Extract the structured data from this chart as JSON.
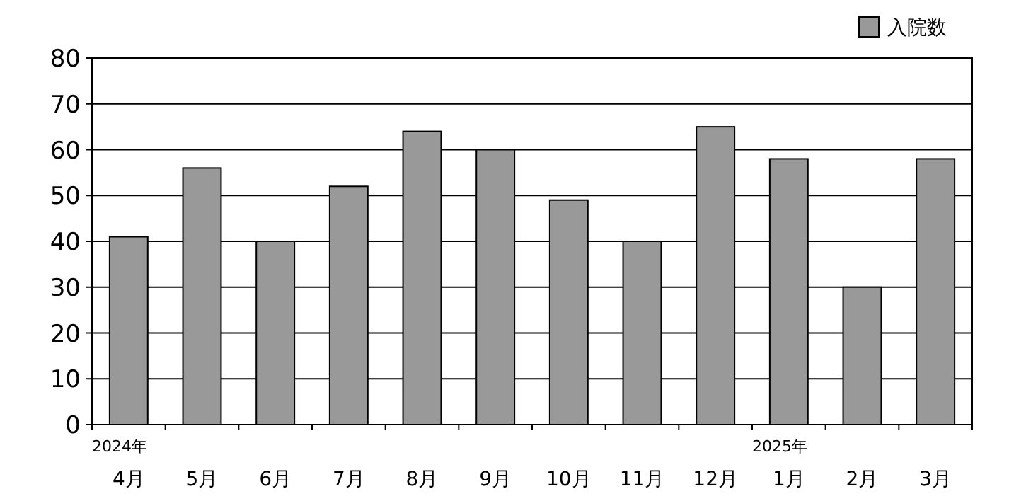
{
  "chart_data": {
    "type": "bar",
    "categories": [
      "2024年\n4月",
      "5月",
      "6月",
      "7月",
      "8月",
      "9月",
      "10月",
      "11月",
      "12月",
      "2025年\n1月",
      "2月",
      "3月"
    ],
    "series": [
      {
        "name": "入院数",
        "color": "#999999",
        "values": [
          41,
          56,
          40,
          52,
          64,
          60,
          49,
          40,
          65,
          58,
          30,
          58
        ]
      }
    ],
    "ylim": [
      0,
      80
    ],
    "yticks": [
      0,
      10,
      20,
      30,
      40,
      50,
      60,
      70,
      80
    ],
    "grid": "y",
    "legend": "top right"
  }
}
